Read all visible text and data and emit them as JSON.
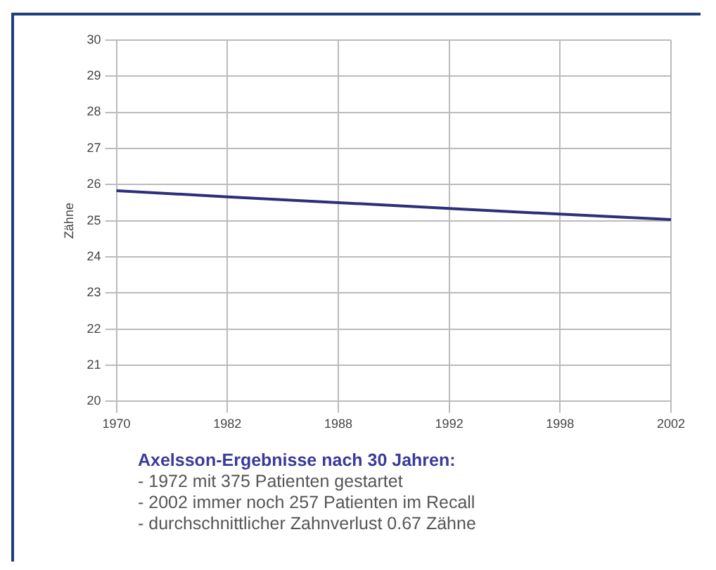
{
  "chart_data": {
    "type": "line",
    "ylabel": "Zähne",
    "categories": [
      "1970",
      "1982",
      "1988",
      "1992",
      "1998",
      "2002"
    ],
    "series": [
      {
        "color": "#2e2e7a",
        "values": [
          25.83,
          25.66,
          25.5,
          25.34,
          25.18,
          25.03
        ]
      }
    ],
    "ylim": [
      20,
      30
    ],
    "yticks": [
      20,
      21,
      22,
      23,
      24,
      25,
      26,
      27,
      28,
      29,
      30
    ],
    "grid": true,
    "legend": false,
    "marker": "none",
    "line_style": "solid",
    "annotations": [
      "Axelsson-Ergebnisse nach 30 Jahren:",
      "- 1972 mit 375 Patienten gestartet",
      "- 2002 immer noch 257 Patienten im Recall",
      "- durchschnittlicher Zahnverlust 0.67 Zähne"
    ]
  }
}
